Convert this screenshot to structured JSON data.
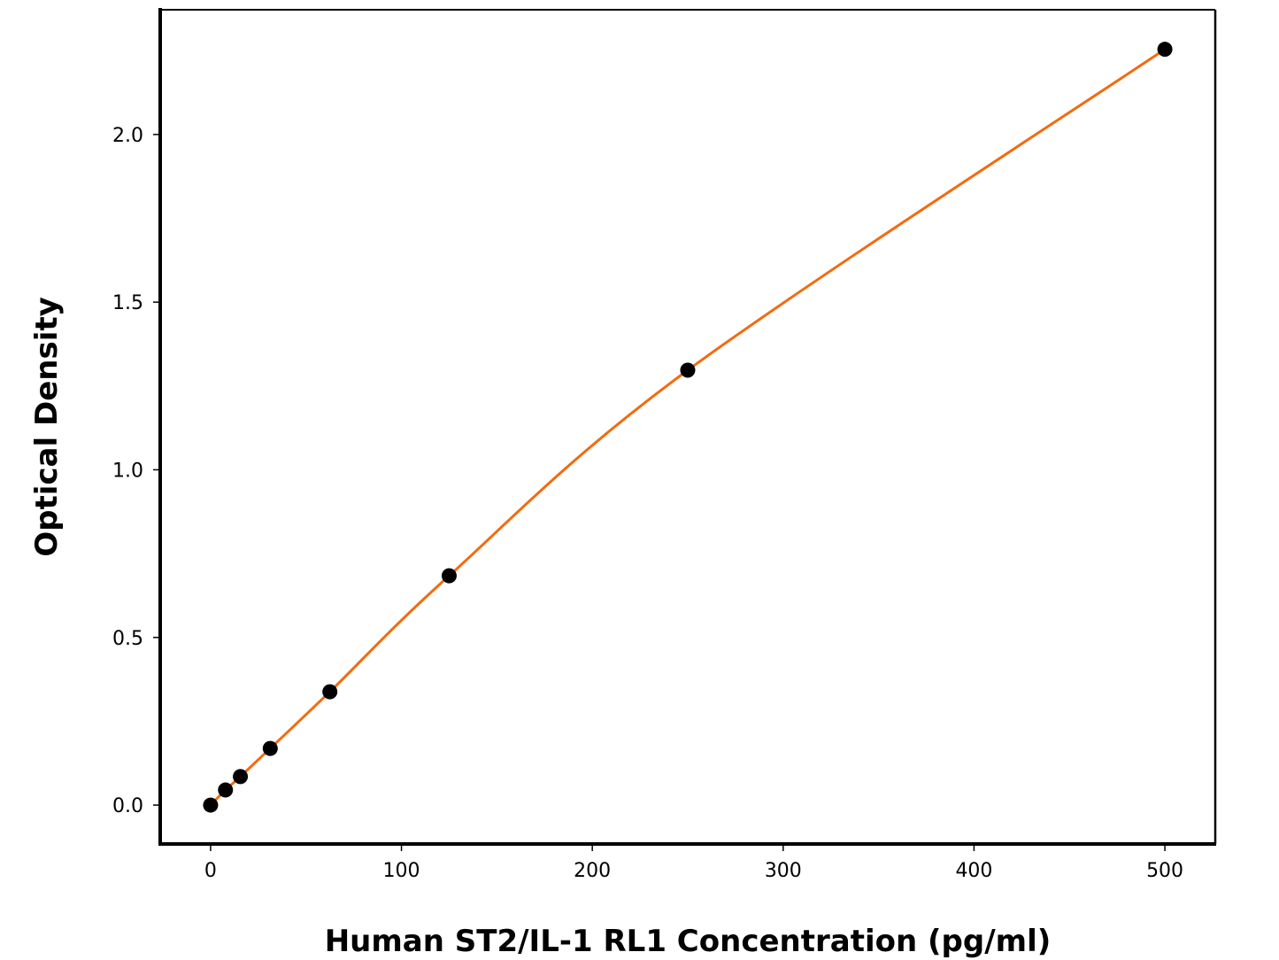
{
  "chart_data": {
    "type": "scatter",
    "title": "",
    "xlabel": "Human ST2/IL-1 RL1 Concentration (pg/ml)",
    "ylabel": "Optical Density",
    "xlim": [
      -26.4,
      526.4
    ],
    "ylim": [
      -0.116,
      2.372
    ],
    "xticks": [
      0,
      100,
      200,
      300,
      400,
      500
    ],
    "yticks": [
      0.0,
      0.5,
      1.0,
      1.5,
      2.0
    ],
    "xtick_labels": [
      "0",
      "100",
      "200",
      "300",
      "400",
      "500"
    ],
    "ytick_labels": [
      "0.0",
      "0.5",
      "1.0",
      "1.5",
      "2.0"
    ],
    "grid": false,
    "series": [
      {
        "x": [
          0,
          7.8,
          15.6,
          31.25,
          62.5,
          125,
          250,
          500
        ],
        "y": [
          0.0,
          0.045,
          0.085,
          0.169,
          0.338,
          0.684,
          1.297,
          2.254
        ],
        "marker_color": "#000000",
        "line_color": "#f26b0f",
        "fit_line": true
      }
    ]
  }
}
